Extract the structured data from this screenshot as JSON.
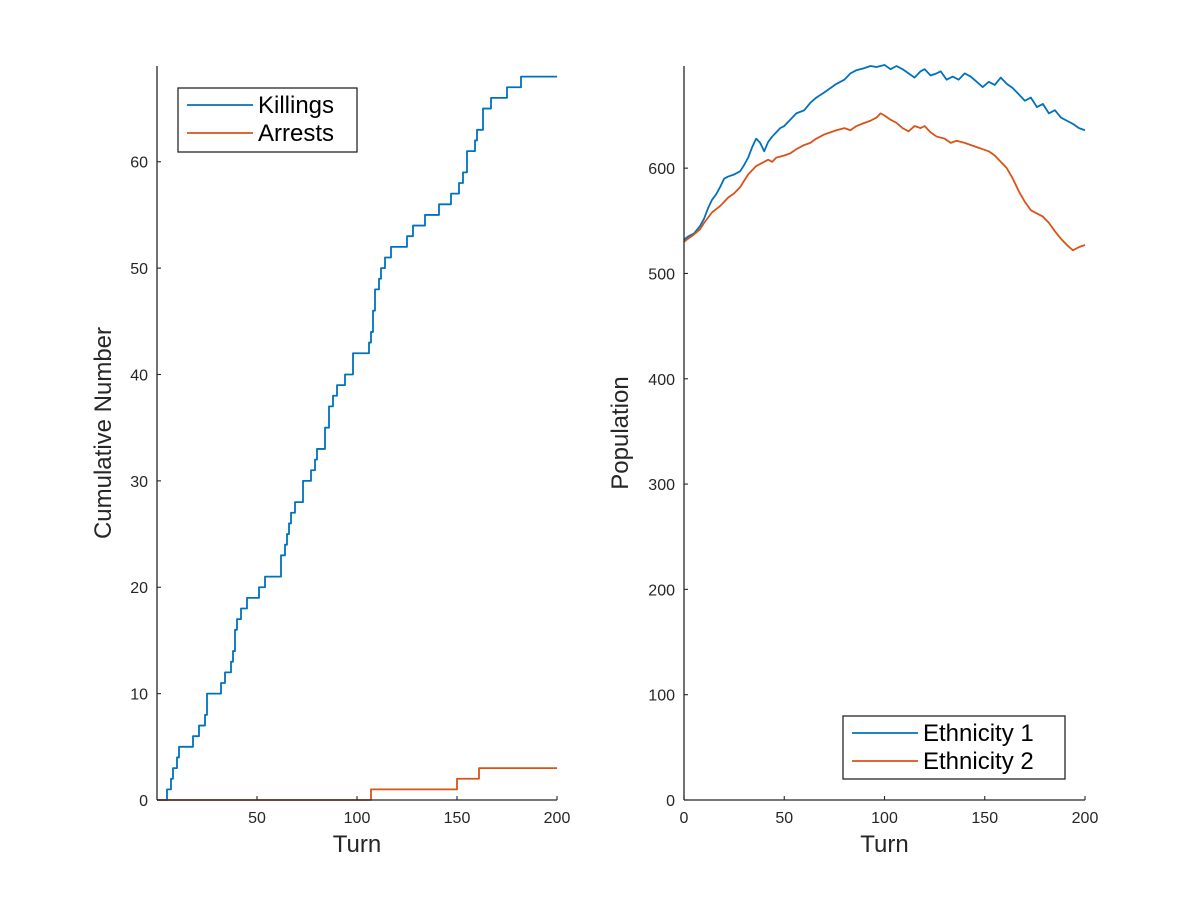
{
  "chart_data": [
    {
      "type": "line",
      "xlabel": "Turn",
      "ylabel": "Cumulative Number",
      "xlim": [
        0,
        200
      ],
      "ylim": [
        0,
        69
      ],
      "xticks": [
        50,
        100,
        150,
        200
      ],
      "xtick_labels": [
        "50",
        "100",
        "150",
        "200"
      ],
      "yticks": [
        0,
        10,
        20,
        30,
        40,
        50,
        60
      ],
      "ytick_labels": [
        "0",
        "10",
        "20",
        "30",
        "40",
        "50",
        "60"
      ],
      "grid": false,
      "legend_position": "top-left",
      "series": [
        {
          "name": "Killings",
          "color": "#0072BD",
          "step": true,
          "points": [
            [
              0,
              0
            ],
            [
              4,
              0
            ],
            [
              5,
              1
            ],
            [
              6,
              1
            ],
            [
              7,
              2
            ],
            [
              8,
              3
            ],
            [
              9,
              3
            ],
            [
              10,
              4
            ],
            [
              11,
              5
            ],
            [
              17,
              5
            ],
            [
              18,
              6
            ],
            [
              20,
              6
            ],
            [
              21,
              7
            ],
            [
              23,
              7
            ],
            [
              24,
              8
            ],
            [
              25,
              10
            ],
            [
              31,
              10
            ],
            [
              32,
              11
            ],
            [
              34,
              12
            ],
            [
              36,
              12
            ],
            [
              37,
              13
            ],
            [
              38,
              14
            ],
            [
              39,
              16
            ],
            [
              40,
              17
            ],
            [
              41,
              17
            ],
            [
              42,
              18
            ],
            [
              44,
              18
            ],
            [
              45,
              19
            ],
            [
              50,
              19
            ],
            [
              51,
              20
            ],
            [
              54,
              21
            ],
            [
              61,
              21
            ],
            [
              62,
              23
            ],
            [
              64,
              24
            ],
            [
              65,
              25
            ],
            [
              66,
              26
            ],
            [
              67,
              27
            ],
            [
              69,
              28
            ],
            [
              72,
              28
            ],
            [
              73,
              30
            ],
            [
              76,
              30
            ],
            [
              77,
              31
            ],
            [
              79,
              32
            ],
            [
              80,
              33
            ],
            [
              82,
              33
            ],
            [
              84,
              35
            ],
            [
              86,
              37
            ],
            [
              88,
              38
            ],
            [
              90,
              39
            ],
            [
              93,
              39
            ],
            [
              94,
              40
            ],
            [
              96,
              40
            ],
            [
              98,
              42
            ],
            [
              105,
              42
            ],
            [
              106,
              43
            ],
            [
              107,
              44
            ],
            [
              108,
              46
            ],
            [
              109,
              48
            ],
            [
              111,
              49
            ],
            [
              112,
              50
            ],
            [
              114,
              51
            ],
            [
              116,
              51
            ],
            [
              117,
              52
            ],
            [
              124,
              52
            ],
            [
              125,
              53
            ],
            [
              127,
              53
            ],
            [
              128,
              54
            ],
            [
              133,
              54
            ],
            [
              134,
              55
            ],
            [
              140,
              55
            ],
            [
              141,
              56
            ],
            [
              146,
              56
            ],
            [
              147,
              57
            ],
            [
              150,
              57
            ],
            [
              151,
              58
            ],
            [
              153,
              59
            ],
            [
              155,
              61
            ],
            [
              158,
              61
            ],
            [
              159,
              62
            ],
            [
              160,
              63
            ],
            [
              161,
              63
            ],
            [
              163,
              65
            ],
            [
              166,
              65
            ],
            [
              167,
              66
            ],
            [
              174,
              66
            ],
            [
              175,
              67
            ],
            [
              181,
              67
            ],
            [
              182,
              68
            ],
            [
              200,
              68
            ]
          ]
        },
        {
          "name": "Arrests",
          "color": "#D95319",
          "step": true,
          "points": [
            [
              0,
              0
            ],
            [
              106,
              0
            ],
            [
              107,
              1
            ],
            [
              149,
              1
            ],
            [
              150,
              2
            ],
            [
              160,
              2
            ],
            [
              161,
              3
            ],
            [
              200,
              3
            ]
          ]
        }
      ]
    },
    {
      "type": "line",
      "xlabel": "Turn",
      "ylabel": "Population",
      "xlim": [
        0,
        200
      ],
      "ylim": [
        0,
        697
      ],
      "xticks": [
        0,
        50,
        100,
        150,
        200
      ],
      "xtick_labels": [
        "0",
        "50",
        "100",
        "150",
        "200"
      ],
      "yticks": [
        0,
        100,
        200,
        300,
        400,
        500,
        600
      ],
      "ytick_labels": [
        "0",
        "100",
        "200",
        "300",
        "400",
        "500",
        "600"
      ],
      "grid": false,
      "legend_position": "bottom-right",
      "series": [
        {
          "name": "Ethnicity 1",
          "color": "#0072BD",
          "x": [
            0,
            2,
            5,
            8,
            10,
            12,
            14,
            16,
            18,
            20,
            22,
            25,
            28,
            30,
            32,
            34,
            36,
            38,
            40,
            42,
            44,
            46,
            48,
            50,
            53,
            56,
            60,
            63,
            66,
            70,
            73,
            76,
            80,
            83,
            86,
            90,
            93,
            96,
            100,
            103,
            106,
            109,
            112,
            115,
            118,
            120,
            123,
            126,
            128,
            131,
            134,
            137,
            140,
            143,
            146,
            149,
            152,
            155,
            158,
            161,
            164,
            167,
            170,
            173,
            176,
            179,
            182,
            185,
            188,
            191,
            194,
            197,
            200
          ],
          "y": [
            532,
            535,
            538,
            545,
            552,
            562,
            570,
            575,
            582,
            590,
            592,
            594,
            597,
            603,
            610,
            620,
            628,
            624,
            616,
            625,
            630,
            634,
            638,
            640,
            646,
            652,
            655,
            662,
            667,
            672,
            676,
            680,
            684,
            690,
            693,
            695,
            697,
            696,
            698,
            694,
            697,
            694,
            690,
            686,
            692,
            694,
            688,
            690,
            692,
            684,
            687,
            684,
            690,
            687,
            682,
            677,
            682,
            679,
            686,
            680,
            676,
            670,
            664,
            667,
            658,
            661,
            652,
            655,
            648,
            645,
            642,
            638,
            636
          ]
        },
        {
          "name": "Ethnicity 2",
          "color": "#D95319",
          "x": [
            0,
            2,
            5,
            8,
            10,
            12,
            14,
            16,
            18,
            20,
            22,
            25,
            28,
            30,
            32,
            34,
            36,
            38,
            40,
            42,
            44,
            46,
            48,
            50,
            53,
            56,
            60,
            63,
            66,
            70,
            73,
            76,
            80,
            83,
            86,
            90,
            93,
            96,
            98,
            100,
            103,
            106,
            109,
            112,
            115,
            118,
            120,
            123,
            126,
            130,
            133,
            136,
            140,
            143,
            146,
            149,
            152,
            155,
            158,
            161,
            164,
            167,
            170,
            173,
            176,
            179,
            182,
            185,
            188,
            191,
            194,
            197,
            200
          ],
          "y": [
            530,
            533,
            537,
            542,
            548,
            553,
            558,
            561,
            564,
            568,
            572,
            576,
            582,
            588,
            594,
            598,
            602,
            604,
            606,
            608,
            606,
            610,
            611,
            612,
            614,
            618,
            622,
            624,
            628,
            632,
            634,
            636,
            638,
            636,
            640,
            643,
            645,
            648,
            652,
            650,
            646,
            643,
            638,
            635,
            640,
            638,
            640,
            634,
            630,
            628,
            624,
            626,
            624,
            622,
            620,
            618,
            616,
            612,
            606,
            600,
            590,
            578,
            568,
            560,
            557,
            554,
            548,
            540,
            533,
            527,
            522,
            525,
            527
          ]
        }
      ]
    }
  ]
}
